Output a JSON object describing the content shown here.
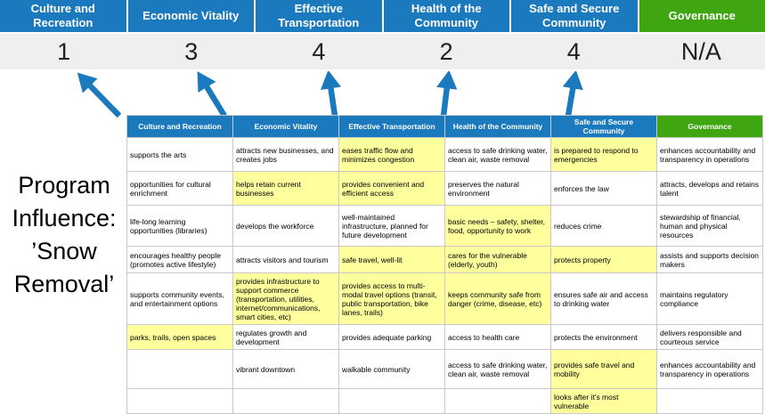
{
  "title": {
    "lines": [
      "Program",
      "Influence:",
      "’Snow",
      "Removal’"
    ]
  },
  "summary": {
    "columns": [
      {
        "label": "Culture and Recreation",
        "score": "1",
        "type": "blue"
      },
      {
        "label": "Economic Vitality",
        "score": "3",
        "type": "blue"
      },
      {
        "label": "Effective Transportation",
        "score": "4",
        "type": "blue"
      },
      {
        "label": "Health of the Community",
        "score": "2",
        "type": "blue"
      },
      {
        "label": "Safe and Secure Community",
        "score": "4",
        "type": "blue"
      },
      {
        "label": "Governance",
        "score": "N/A",
        "type": "green"
      }
    ]
  },
  "matrix": {
    "headers": [
      {
        "label": "Culture and Recreation",
        "type": "blue"
      },
      {
        "label": "Economic Vitality",
        "type": "blue"
      },
      {
        "label": "Effective Transportation",
        "type": "blue"
      },
      {
        "label": "Health of the Community",
        "type": "blue"
      },
      {
        "label": "Safe and Secure Community",
        "type": "blue"
      },
      {
        "label": "Governance",
        "type": "green"
      }
    ],
    "rows": [
      [
        {
          "text": "supports the arts",
          "highlight": false
        },
        {
          "text": "attracts new businesses, and creates jobs",
          "highlight": false
        },
        {
          "text": "eases traffic flow and minimizes congestion",
          "highlight": true
        },
        {
          "text": "access to safe drinking water, clean air, waste removal",
          "highlight": false
        },
        {
          "text": "is prepared to respond to emergencies",
          "highlight": true
        },
        {
          "text": "enhances accountability and transparency in operations",
          "highlight": false
        }
      ],
      [
        {
          "text": "opportunities for cultural enrichment",
          "highlight": false
        },
        {
          "text": "helps retain current businesses",
          "highlight": true
        },
        {
          "text": "provides convenient and efficient access",
          "highlight": true
        },
        {
          "text": "preserves the natural environment",
          "highlight": false
        },
        {
          "text": "enforces the law",
          "highlight": false
        },
        {
          "text": "attracts, develops and retains talent",
          "highlight": false
        }
      ],
      [
        {
          "text": "life-long learning opportunities (libraries)",
          "highlight": false
        },
        {
          "text": "develops the workforce",
          "highlight": false
        },
        {
          "text": "well-maintained infrastructure, planned for future development",
          "highlight": false
        },
        {
          "text": "basic needs – safety, shelter, food, opportunity to work",
          "highlight": true
        },
        {
          "text": "reduces crime",
          "highlight": false
        },
        {
          "text": "stewardship of financial, human and physical resources",
          "highlight": false
        }
      ],
      [
        {
          "text": "encourages healthy people (promotes active lifestyle)",
          "highlight": false
        },
        {
          "text": "attracts visitors and tourism",
          "highlight": false
        },
        {
          "text": "safe travel, well-lit",
          "highlight": true
        },
        {
          "text": "cares for the vulnerable (elderly, youth)",
          "highlight": true
        },
        {
          "text": "protects property",
          "highlight": true
        },
        {
          "text": "assists and supports decision makers",
          "highlight": false
        }
      ],
      [
        {
          "text": "supports community events, and entertainment options",
          "highlight": false
        },
        {
          "text": "provides infrastructure to support commerce (transportation, utilities, internet/communications, smart cities, etc)",
          "highlight": true
        },
        {
          "text": "provides access to multi-modal travel options (transit, public transportation, bike lanes, trails)",
          "highlight": true
        },
        {
          "text": "keeps community safe from danger (crime, disease, etc)",
          "highlight": true
        },
        {
          "text": "ensures safe air and access to drinking water",
          "highlight": false
        },
        {
          "text": "maintains regulatory compliance",
          "highlight": false
        }
      ],
      [
        {
          "text": "parks, trails, open spaces",
          "highlight": true
        },
        {
          "text": "regulates growth and development",
          "highlight": false
        },
        {
          "text": "provides adequate parking",
          "highlight": false
        },
        {
          "text": "access to health care",
          "highlight": false
        },
        {
          "text": "protects the environment",
          "highlight": false
        },
        {
          "text": "delivers responsible and courteous service",
          "highlight": false
        }
      ],
      [
        {
          "text": "",
          "highlight": false
        },
        {
          "text": "vibrant downtown",
          "highlight": false
        },
        {
          "text": "walkable community",
          "highlight": false
        },
        {
          "text": "access to safe drinking water, clean air, waste removal",
          "highlight": false
        },
        {
          "text": "provides safe travel and mobility",
          "highlight": true
        },
        {
          "text": "enhances accountability and transparency in operations",
          "highlight": false
        }
      ],
      [
        {
          "text": "",
          "highlight": false
        },
        {
          "text": "",
          "highlight": false
        },
        {
          "text": "",
          "highlight": false
        },
        {
          "text": "",
          "highlight": false
        },
        {
          "text": "looks after it's most vulnerable",
          "highlight": true
        },
        {
          "text": "",
          "highlight": false
        }
      ]
    ]
  },
  "colors": {
    "header_blue": "#1B79BE",
    "header_green": "#3FA510",
    "highlight_yellow": "#FFFF9E",
    "score_band_bg": "#EFEFEF",
    "arrow_blue": "#1B79BE"
  }
}
